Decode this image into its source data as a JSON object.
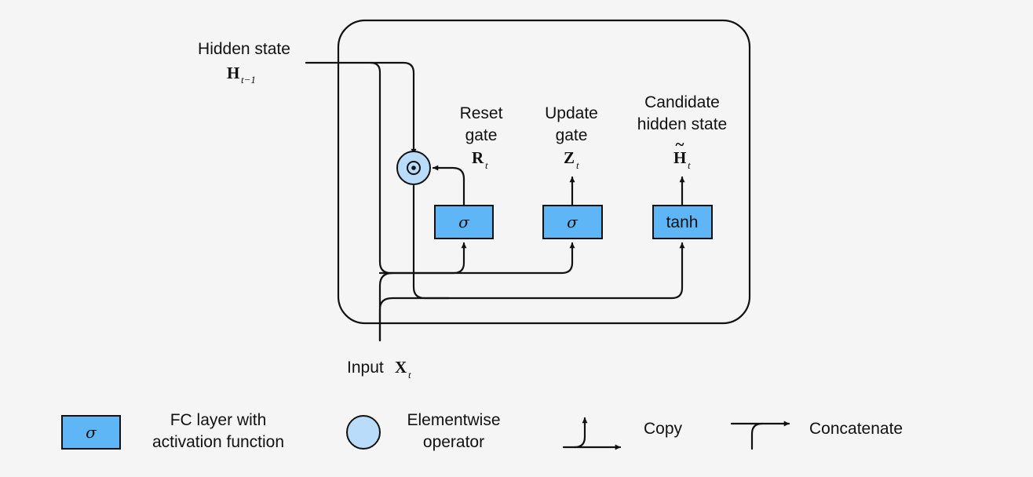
{
  "colors": {
    "background": "#f5f5f6",
    "fc_layer_fill": "#5fb6f6",
    "elementwise_fill": "#b8dcfa",
    "stroke": "#111111"
  },
  "labels": {
    "hidden_state": "Hidden state",
    "hidden_var": "H",
    "hidden_sub": "t−1",
    "input_text": "Input",
    "input_var": "X",
    "input_sub": "t"
  },
  "gates": [
    {
      "title_line1": "Reset",
      "title_line2": "gate",
      "var": "R",
      "sub": "t",
      "activation": "σ"
    },
    {
      "title_line1": "Update",
      "title_line2": "gate",
      "var": "Z",
      "sub": "t",
      "activation": "σ"
    },
    {
      "title_line1": "Candidate",
      "title_line2": "hidden state",
      "var": "H",
      "var_accent": "~",
      "sub": "t",
      "activation": "tanh"
    }
  ],
  "operator_icon": "elementwise-product-icon",
  "legend": {
    "fc_symbol": "σ",
    "fc_line1": "FC layer with",
    "fc_line2": "activation function",
    "elem_line1": "Elementwise",
    "elem_line2": "operator",
    "copy": "Copy",
    "concatenate": "Concatenate"
  }
}
